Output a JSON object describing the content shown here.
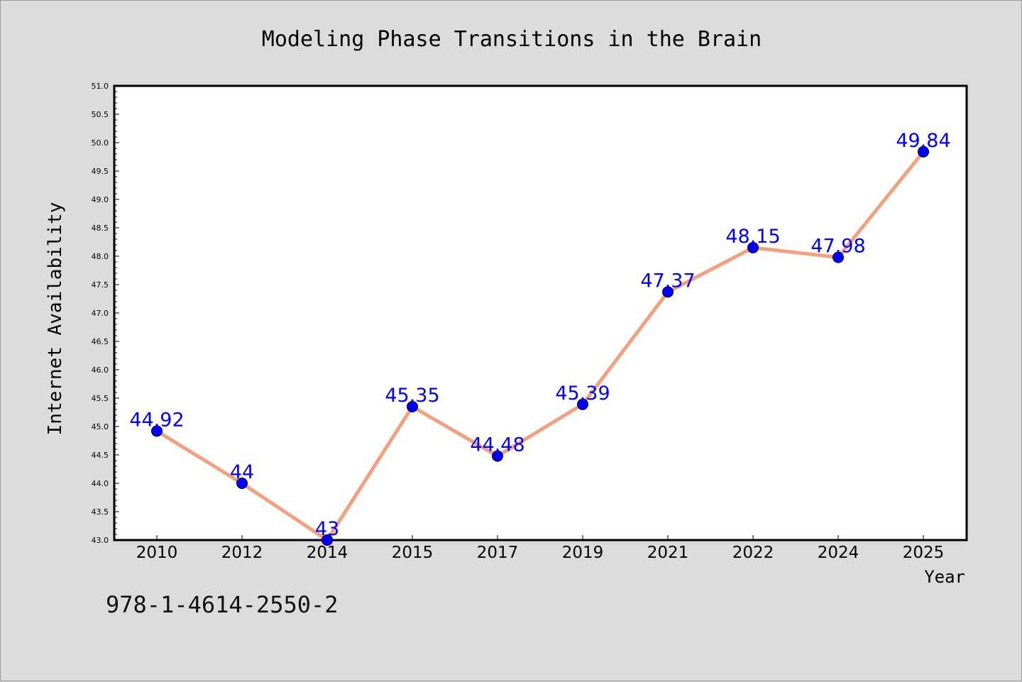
{
  "chart_data": {
    "type": "line",
    "title": "Modeling Phase Transitions in the Brain",
    "xlabel": "Year",
    "ylabel": "Internet Availability",
    "categories": [
      "2010",
      "2012",
      "2014",
      "2015",
      "2017",
      "2019",
      "2021",
      "2022",
      "2024",
      "2025"
    ],
    "series": [
      {
        "values": [
          44.92,
          44,
          43,
          45.35,
          44.48,
          45.39,
          47.37,
          48.15,
          47.98,
          49.84
        ],
        "data_labels": [
          "44.92",
          "44",
          "43",
          "45.35",
          "44.48",
          "45.39",
          "47.37",
          "48.15",
          "47.98",
          "49.84"
        ]
      }
    ],
    "ylim": [
      43.0,
      51.0
    ],
    "yticks": [
      "43.0",
      "43.5",
      "44.0",
      "44.5",
      "45.0",
      "45.5",
      "46.0",
      "46.5",
      "47.0",
      "47.5",
      "48.0",
      "48.5",
      "49.0",
      "49.5",
      "50.0",
      "50.5",
      "51.0"
    ],
    "grid": false,
    "line_color": "#f4a07e",
    "marker_color": "#0000ff",
    "label_color": "#0000ff",
    "plot_background": "#ffffff",
    "figure_background": "#dcdcdc"
  },
  "footer": {
    "isbn": "978-1-4614-2550-2"
  }
}
